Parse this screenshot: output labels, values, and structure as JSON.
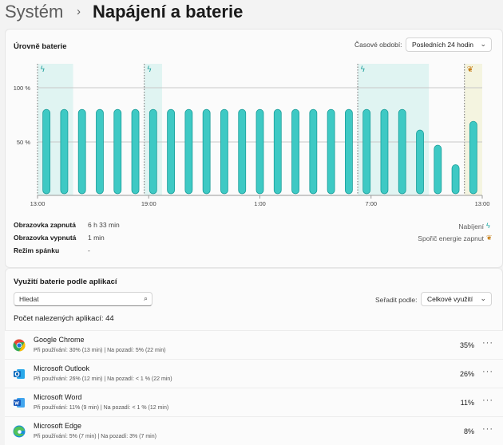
{
  "breadcrumb": {
    "parent": "Systém",
    "separator": "›",
    "current": "Napájení a baterie"
  },
  "battery_levels": {
    "title": "Úrovně baterie",
    "period_label": "Časové období:",
    "period_value": "Posledních 24 hodin"
  },
  "chart_data": {
    "type": "bar",
    "y_tick_labels": [
      "100 %",
      "50 %"
    ],
    "x_tick_labels": [
      "13:00",
      "19:00",
      "1:00",
      "7:00",
      "13:00"
    ],
    "values": [
      80,
      80,
      80,
      80,
      80,
      80,
      80,
      80,
      80,
      80,
      80,
      80,
      80,
      80,
      80,
      80,
      80,
      80,
      80,
      80,
      80,
      61,
      47,
      29,
      69
    ],
    "ylim": [
      0,
      100
    ],
    "charging_regions": [
      [
        0,
        1
      ],
      [
        6,
        6
      ],
      [
        18,
        21
      ]
    ],
    "saver_regions": [
      [
        24,
        24
      ]
    ],
    "grid": true,
    "colors": {
      "bar": "#3ec9c4",
      "bar_edge": "#1a9e9a",
      "charging_bg": "#e0f4f2",
      "saver_bg": "#f4f4e0"
    }
  },
  "stats": [
    {
      "label": "Obrazovka zapnutá",
      "value": "6 h 33 min"
    },
    {
      "label": "Obrazovka vypnutá",
      "value": "1 min"
    },
    {
      "label": "Režim spánku",
      "value": "-"
    }
  ],
  "legend": {
    "charging": "Nabíjení",
    "saver": "Spořič energie zapnut",
    "charging_icon": "lightning-icon",
    "saver_icon": "leaf-icon"
  },
  "app_usage": {
    "title": "Využití baterie podle aplikací",
    "search_placeholder": "Hledat",
    "sort_label": "Seřadit podle:",
    "sort_value": "Celkové využití",
    "count_text": "Počet nalezených aplikací: 44",
    "apps": [
      {
        "name": "Google Chrome",
        "detail": "Při používání: 30% (13 min) | Na pozadí: 5% (22 min)",
        "percent": "35%",
        "icon": "chrome-icon",
        "color": "#e8453c"
      },
      {
        "name": "Microsoft Outlook",
        "detail": "Při používání: 26% (12 min) | Na pozadí: < 1 % (22 min)",
        "percent": "26%",
        "icon": "outlook-icon",
        "color": "#0f6cbd"
      },
      {
        "name": "Microsoft Word",
        "detail": "Při používání: 11% (9 min) | Na pozadí: < 1 % (12 min)",
        "percent": "11%",
        "icon": "word-icon",
        "color": "#1b5ebe"
      },
      {
        "name": "Microsoft Edge",
        "detail": "Při používání: 5% (7 min) | Na pozadí: 3% (7 min)",
        "percent": "8%",
        "icon": "edge-icon",
        "color": "#1a8fd8"
      }
    ],
    "more_label": "···"
  }
}
